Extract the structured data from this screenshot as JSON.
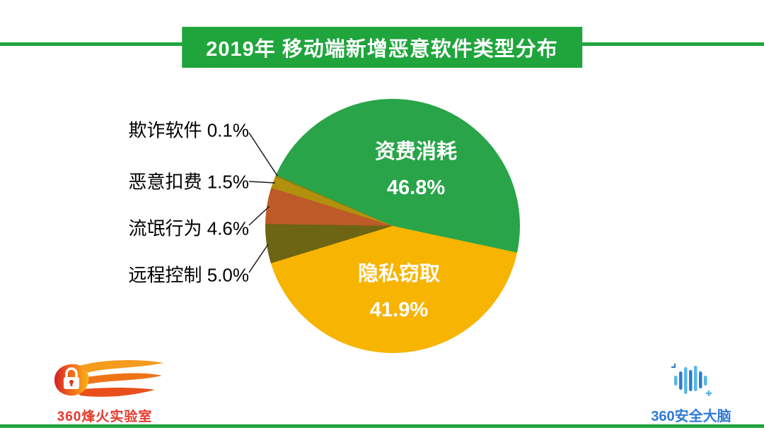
{
  "header": {
    "title": "2019年 移动端新增恶意软件类型分布"
  },
  "chart_data": {
    "type": "pie",
    "title": "2019年 移动端新增恶意软件类型分布",
    "unit": "%",
    "start_angle_deg": 293.6,
    "legend": "none",
    "label_format": "{label} {value}%",
    "slices": [
      {
        "label": "资费消耗",
        "value": 46.8,
        "color": "#29a449",
        "label_placement": "inside"
      },
      {
        "label": "隐私窃取",
        "value": 41.9,
        "color": "#f7b400",
        "label_placement": "inside"
      },
      {
        "label": "远程控制",
        "value": 5.0,
        "color": "#6d6414",
        "label_placement": "outside"
      },
      {
        "label": "流氓行为",
        "value": 4.6,
        "color": "#bd5a27",
        "label_placement": "outside"
      },
      {
        "label": "恶意扣费",
        "value": 1.5,
        "color": "#b1900e",
        "label_placement": "outside"
      },
      {
        "label": "欺诈软件",
        "value": 0.1,
        "color": "#8c7e0a",
        "label_placement": "outside"
      }
    ]
  },
  "footer": {
    "left_logo_text": "360烽火实验室",
    "left_logo_color": "#e6382b",
    "right_logo_text": "360安全大脑",
    "right_logo_color": "#2f7ad6"
  },
  "theme": {
    "banner_green": "#1fa53c",
    "line_green": "#1fa53c",
    "background": "#ffffff",
    "callout_text_color": "#000000",
    "inside_label_color": "#ffffff"
  }
}
